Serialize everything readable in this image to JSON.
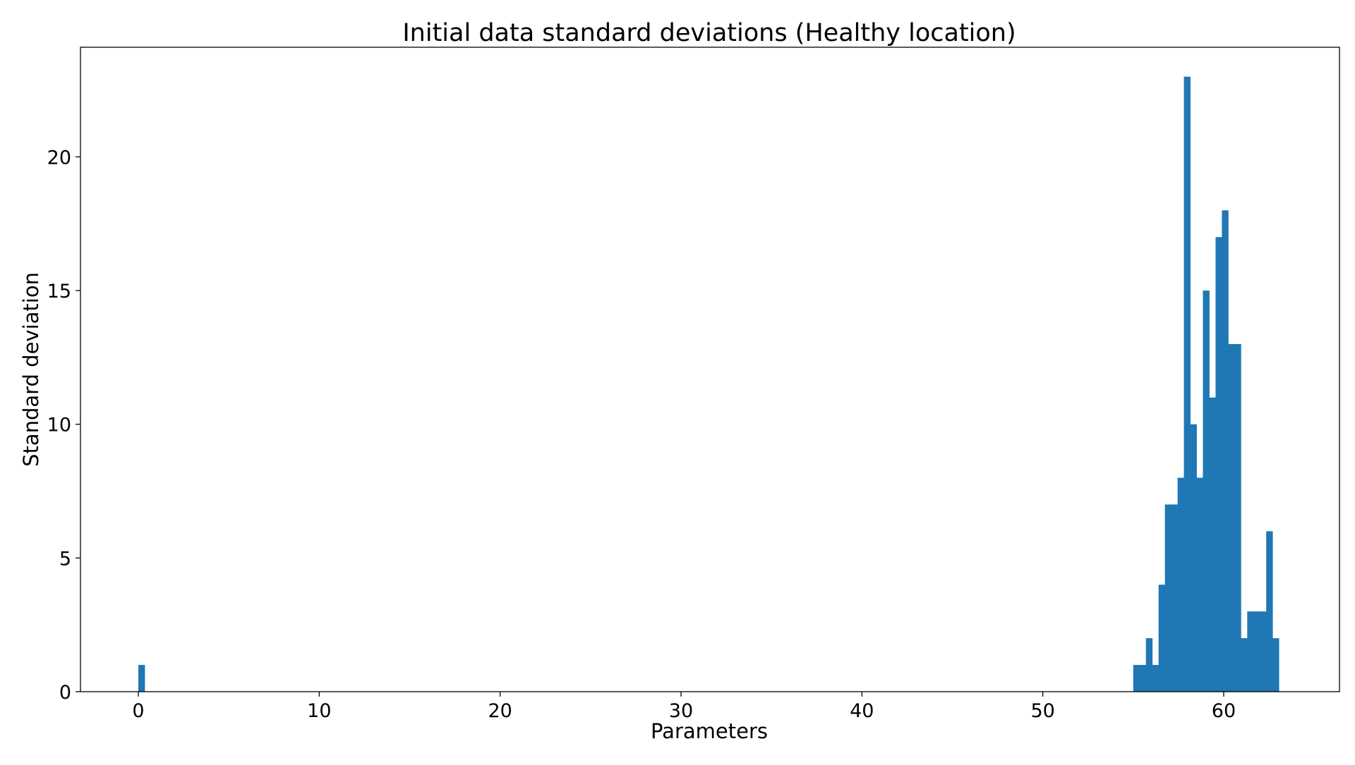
{
  "chart_data": {
    "type": "bar",
    "title": "Initial data standard deviations (Healthy location)",
    "xlabel": "Parameters",
    "ylabel": "Standard deviation",
    "xlim": [
      -3.2,
      66.4
    ],
    "ylim": [
      0,
      24.1
    ],
    "xticks": [
      0,
      10,
      20,
      30,
      40,
      50,
      60
    ],
    "yticks": [
      0,
      5,
      10,
      15,
      20
    ],
    "grid": false,
    "color": "#1f77b4",
    "bin_width": 0.35,
    "bars": [
      {
        "x": 0.0,
        "value": 1
      },
      {
        "x": 55.0,
        "value": 1
      },
      {
        "x": 55.35,
        "value": 1
      },
      {
        "x": 55.7,
        "value": 2
      },
      {
        "x": 56.05,
        "value": 1
      },
      {
        "x": 56.4,
        "value": 4
      },
      {
        "x": 56.75,
        "value": 7
      },
      {
        "x": 57.1,
        "value": 7
      },
      {
        "x": 57.45,
        "value": 8
      },
      {
        "x": 57.8,
        "value": 23
      },
      {
        "x": 58.15,
        "value": 10
      },
      {
        "x": 58.5,
        "value": 8
      },
      {
        "x": 58.85,
        "value": 15
      },
      {
        "x": 59.2,
        "value": 11
      },
      {
        "x": 59.55,
        "value": 17
      },
      {
        "x": 59.9,
        "value": 18
      },
      {
        "x": 60.25,
        "value": 13
      },
      {
        "x": 60.6,
        "value": 13
      },
      {
        "x": 60.95,
        "value": 2
      },
      {
        "x": 61.3,
        "value": 3
      },
      {
        "x": 61.65,
        "value": 3
      },
      {
        "x": 62.0,
        "value": 3
      },
      {
        "x": 62.35,
        "value": 6
      },
      {
        "x": 62.7,
        "value": 2
      }
    ]
  }
}
